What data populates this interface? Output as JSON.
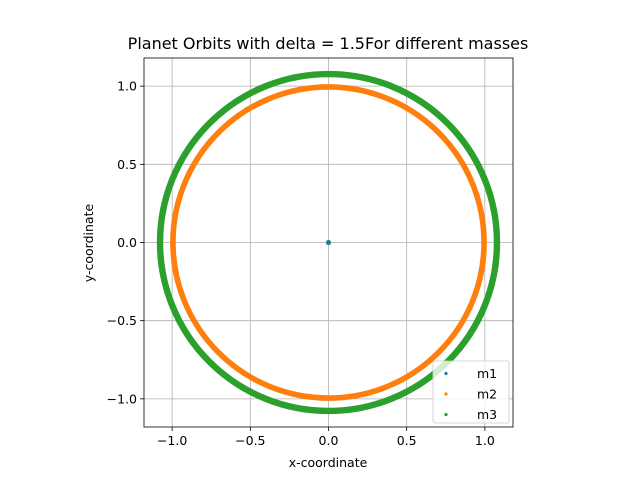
{
  "chart_data": {
    "type": "scatter",
    "title": "Planet Orbits with delta = 1.5For different masses",
    "xlabel": "x-coordinate",
    "ylabel": "y-coordinate",
    "xlim": [
      -1.18,
      1.18
    ],
    "ylim": [
      -1.18,
      1.18
    ],
    "xticks": [
      -1.0,
      -0.5,
      0.0,
      0.5,
      1.0
    ],
    "xtick_labels": [
      "−1.0",
      "−0.5",
      "0.0",
      "0.5",
      "1.0"
    ],
    "yticks": [
      -1.0,
      -0.5,
      0.0,
      0.5,
      1.0
    ],
    "ytick_labels": [
      "−1.0",
      "−0.5",
      "0.0",
      "0.5",
      "1.0"
    ],
    "grid": true,
    "legend_position": "lower-right",
    "series": [
      {
        "name": "m1",
        "color": "#1f77b4",
        "shape": "point",
        "center": [
          0.0,
          0.0
        ]
      },
      {
        "name": "m2",
        "color": "#ff7f0e",
        "shape": "orbit",
        "center": [
          0.0,
          0.0
        ],
        "radius_inner": 0.985,
        "radius_outer": 1.005
      },
      {
        "name": "m3",
        "color": "#2ca02c",
        "shape": "orbit",
        "center": [
          0.0,
          0.0
        ],
        "radius_inner": 1.065,
        "radius_outer": 1.09
      }
    ]
  }
}
